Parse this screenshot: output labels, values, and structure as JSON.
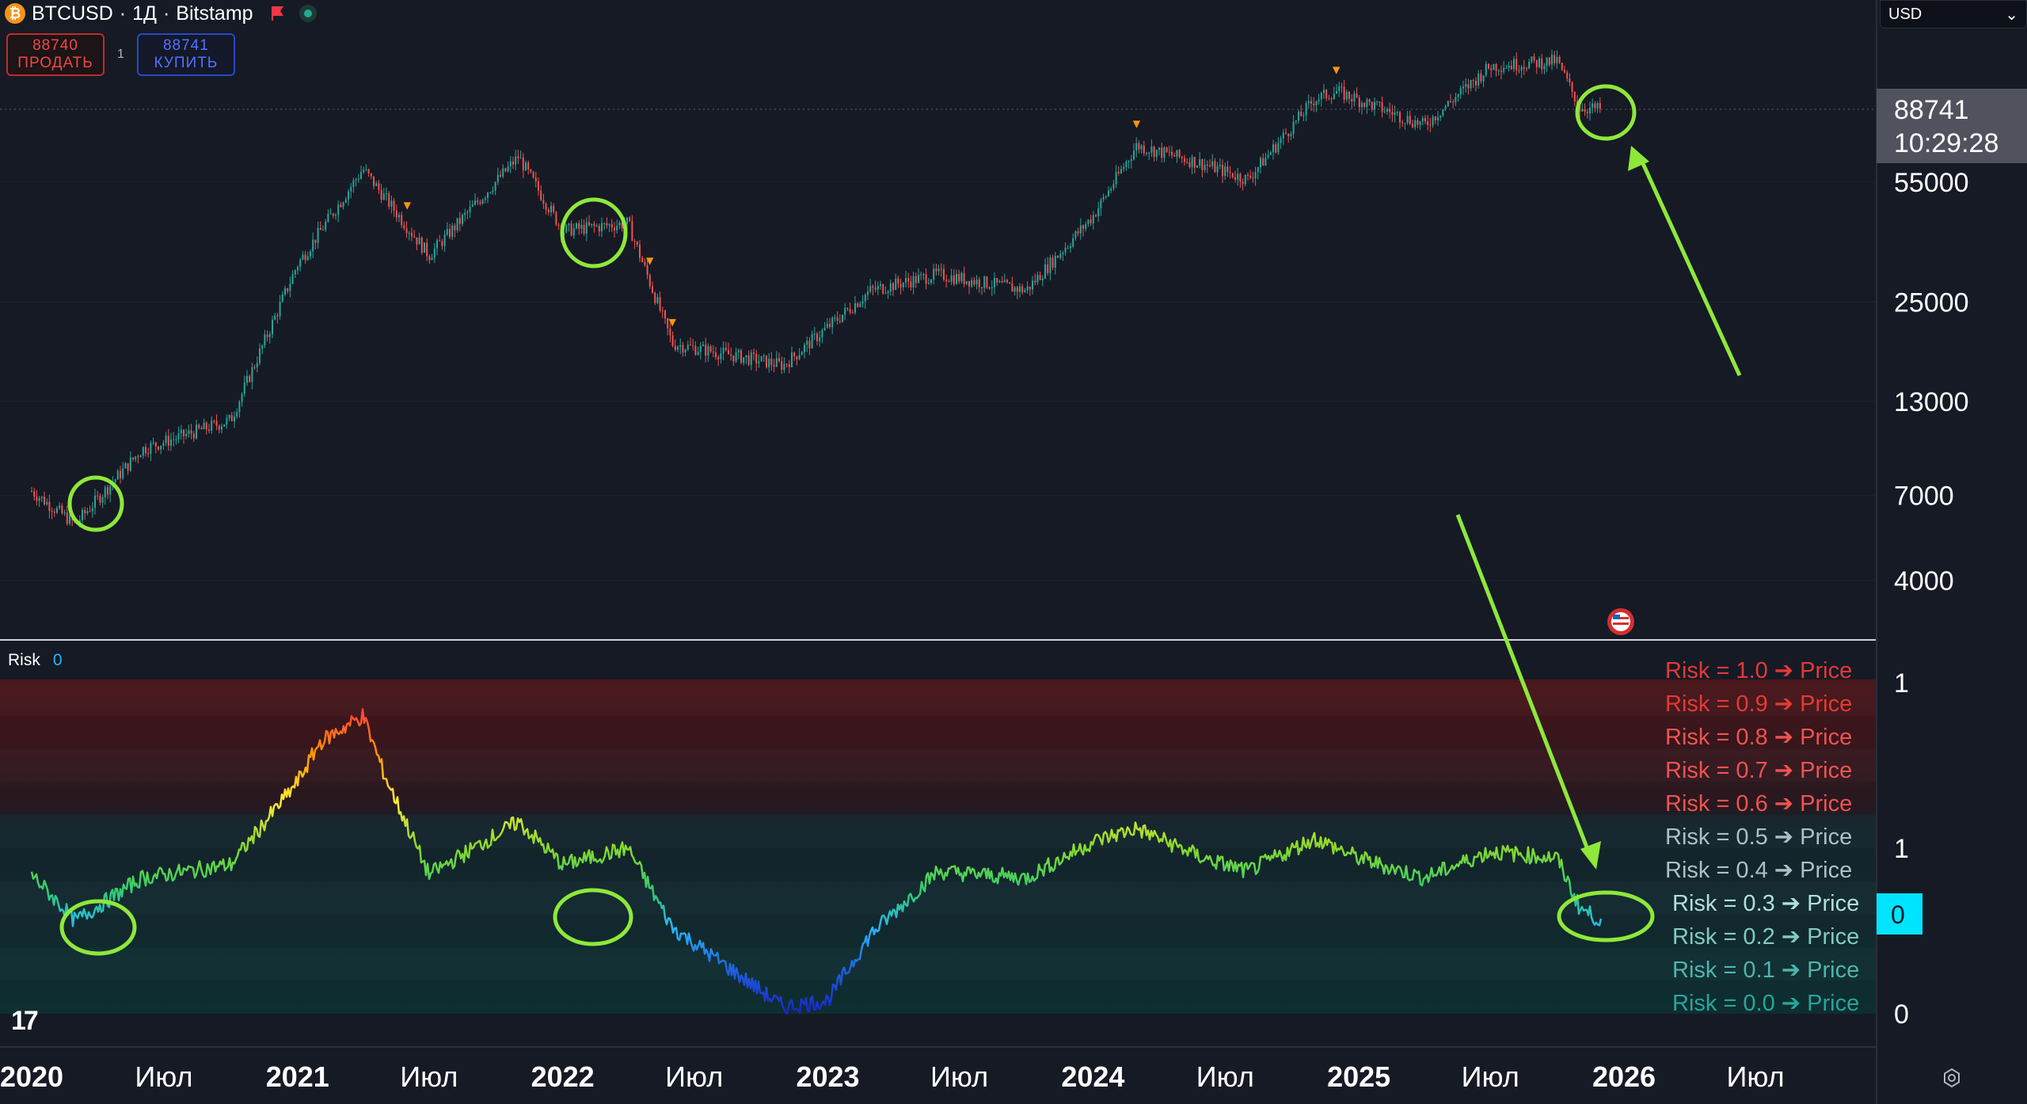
{
  "header": {
    "symbol": "BTCUSD",
    "interval": "1Д",
    "exchange": "Bitstamp",
    "sep": "·",
    "icons": [
      "bitcoin-icon",
      "flag-icon",
      "market-status-icon"
    ]
  },
  "trade": {
    "sell_price": "88740",
    "sell_label": "ПРОДАТЬ",
    "buy_price": "88741",
    "buy_label": "КУПИТЬ",
    "spread": "1"
  },
  "currency": {
    "label": "USD"
  },
  "price_badge": {
    "price": "88741",
    "countdown": "10:29:28"
  },
  "colors": {
    "background": "#161a25",
    "up": "#26a69a",
    "down": "#ef5350",
    "annotation": "#8ee83a",
    "badge_bg": "#50535e",
    "risk_badge": "#00e5ff"
  },
  "chart_data": [
    {
      "type": "candlestick",
      "panel": "price",
      "symbol": "BTCUSD",
      "scale": "log",
      "ylim": [
        2500,
        140000
      ],
      "y_tick_labels": [
        "55000",
        "25000",
        "13000",
        "7000",
        "4000"
      ],
      "y_ticks": [
        55000,
        25000,
        13000,
        7000,
        4000
      ],
      "last_price": 88741,
      "x_tick_labels": [
        "2020",
        "Июл",
        "2021",
        "Июл",
        "2022",
        "Июл",
        "2023",
        "Июл",
        "2024",
        "Июл",
        "2025",
        "Июл",
        "2026",
        "Июл"
      ],
      "x": [
        "2020-01",
        "2020-03",
        "2020-06",
        "2020-10",
        "2021-01",
        "2021-04",
        "2021-07",
        "2021-11",
        "2022-01",
        "2022-04",
        "2022-06",
        "2022-11",
        "2023-03",
        "2023-06",
        "2023-10",
        "2024-01",
        "2024-03",
        "2024-06",
        "2024-08",
        "2024-11",
        "2024-12",
        "2025-04",
        "2025-07",
        "2025-10",
        "2025-11",
        "2025-12"
      ],
      "close": [
        7200,
        5800,
        9500,
        11500,
        32000,
        60000,
        34000,
        65000,
        40000,
        42000,
        19000,
        16500,
        27000,
        30000,
        27000,
        44000,
        70000,
        62000,
        56000,
        95000,
        100000,
        80000,
        118000,
        122000,
        90000,
        88741
      ],
      "markers": [
        {
          "x": "2021-06",
          "label": "▼"
        },
        {
          "x": "2022-05",
          "label": "▼"
        },
        {
          "x": "2022-06",
          "label": "▼"
        },
        {
          "x": "2024-03",
          "label": "▼"
        },
        {
          "x": "2024-12",
          "label": "▼"
        }
      ]
    },
    {
      "type": "line",
      "panel": "indicator",
      "title": "Risk",
      "current_value_label": "0",
      "ylim": [
        0,
        1
      ],
      "y_tick_labels": [
        "1",
        "1",
        "0"
      ],
      "x": [
        "2020-01",
        "2020-03",
        "2020-06",
        "2020-10",
        "2021-01",
        "2021-02",
        "2021-04",
        "2021-05",
        "2021-07",
        "2021-11",
        "2022-01",
        "2022-04",
        "2022-06",
        "2022-11",
        "2023-01",
        "2023-03",
        "2023-06",
        "2023-10",
        "2024-01",
        "2024-03",
        "2024-06",
        "2024-08",
        "2024-11",
        "2025-01",
        "2025-04",
        "2025-07",
        "2025-10",
        "2025-11",
        "2025-12"
      ],
      "values": [
        0.42,
        0.28,
        0.41,
        0.45,
        0.7,
        0.82,
        0.9,
        0.72,
        0.42,
        0.58,
        0.45,
        0.5,
        0.26,
        0.02,
        0.04,
        0.24,
        0.43,
        0.41,
        0.52,
        0.56,
        0.47,
        0.43,
        0.53,
        0.47,
        0.41,
        0.49,
        0.47,
        0.32,
        0.28
      ],
      "legend": [
        {
          "text": "Risk = 1.0  ➔  Price",
          "color": "#e53935"
        },
        {
          "text": "Risk = 0.9  ➔  Price",
          "color": "#e53935"
        },
        {
          "text": "Risk = 0.8  ➔  Price",
          "color": "#ef5350"
        },
        {
          "text": "Risk = 0.7  ➔  Price",
          "color": "#ef5350"
        },
        {
          "text": "Risk = 0.6  ➔  Price",
          "color": "#ef5350"
        },
        {
          "text": "Risk = 0.5  ➔  Price",
          "color": "#b0bec5"
        },
        {
          "text": "Risk = 0.4  ➔  Price",
          "color": "#b0bec5"
        },
        {
          "text": "Risk = 0.3  ➔  Price",
          "color": "#b2dfdb"
        },
        {
          "text": "Risk = 0.2  ➔  Price",
          "color": "#80cbc4"
        },
        {
          "text": "Risk = 0.1  ➔  Price",
          "color": "#4db6ac"
        },
        {
          "text": "Risk = 0.0  ➔  Price",
          "color": "#26a69a"
        }
      ]
    }
  ]
}
